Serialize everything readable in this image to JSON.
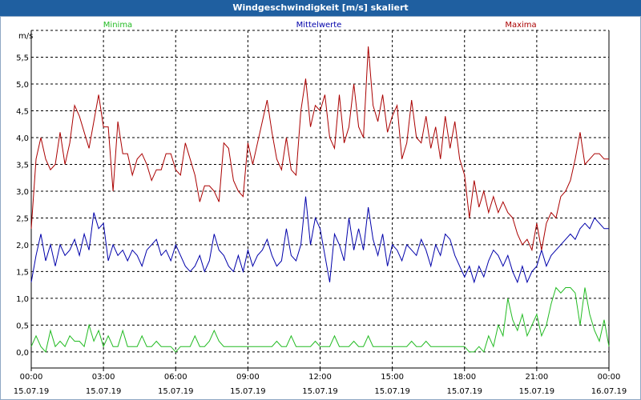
{
  "window": {
    "title": "Windgeschwindigkeit [m/s] skaliert"
  },
  "colors": {
    "titlebar": "#1f5fa0",
    "minima": "#22bb22",
    "mittelwerte": "#0000aa",
    "maxima": "#aa0000",
    "grid": "#000000"
  },
  "chart_data": {
    "type": "line",
    "title": "Windgeschwindigkeit [m/s] skaliert",
    "ylabel": "m/s",
    "xlabel": "",
    "ylim": [
      -0.3,
      6.0
    ],
    "yticks": [
      "0,0",
      "0,5",
      "1,0",
      "1,5",
      "2,0",
      "2,5",
      "3,0",
      "3,5",
      "4,0",
      "4,5",
      "5,0",
      "5,5"
    ],
    "ytick_values": [
      0,
      0.5,
      1.0,
      1.5,
      2.0,
      2.5,
      3.0,
      3.5,
      4.0,
      4.5,
      5.0,
      5.5
    ],
    "xlim": [
      0,
      24
    ],
    "xticks": [
      {
        "hour": 0,
        "time": "00:00",
        "date": "15.07.19"
      },
      {
        "hour": 3,
        "time": "03:00",
        "date": "15.07.19"
      },
      {
        "hour": 6,
        "time": "06:00",
        "date": "15.07.19"
      },
      {
        "hour": 9,
        "time": "09:00",
        "date": "15.07.19"
      },
      {
        "hour": 12,
        "time": "12:00",
        "date": "15.07.19"
      },
      {
        "hour": 15,
        "time": "15:00",
        "date": "15.07.19"
      },
      {
        "hour": 18,
        "time": "18:00",
        "date": "15.07.19"
      },
      {
        "hour": 21,
        "time": "21:00",
        "date": "15.07.19"
      },
      {
        "hour": 24,
        "time": "00:00",
        "date": "16.07.19"
      }
    ],
    "grid": true,
    "series": [
      {
        "name": "Minima",
        "color": "#22bb22",
        "x": [
          0,
          0.2,
          0.4,
          0.6,
          0.8,
          1.0,
          1.2,
          1.4,
          1.6,
          1.8,
          2.0,
          2.2,
          2.4,
          2.6,
          2.8,
          3.0,
          3.2,
          3.4,
          3.6,
          3.8,
          4.0,
          4.2,
          4.4,
          4.6,
          4.8,
          5.0,
          5.2,
          5.4,
          5.6,
          5.8,
          6.0,
          6.2,
          6.4,
          6.6,
          6.8,
          7.0,
          7.2,
          7.4,
          7.6,
          7.8,
          8.0,
          8.2,
          8.4,
          8.6,
          8.8,
          9.0,
          9.2,
          9.4,
          9.6,
          9.8,
          10.0,
          10.2,
          10.4,
          10.6,
          10.8,
          11.0,
          11.2,
          11.4,
          11.6,
          11.8,
          12.0,
          12.2,
          12.4,
          12.6,
          12.8,
          13.0,
          13.2,
          13.4,
          13.6,
          13.8,
          14.0,
          14.2,
          14.4,
          14.6,
          14.8,
          15.0,
          15.2,
          15.4,
          15.6,
          15.8,
          16.0,
          16.2,
          16.4,
          16.6,
          16.8,
          17.0,
          17.2,
          17.4,
          17.6,
          17.8,
          18.0,
          18.2,
          18.4,
          18.6,
          18.8,
          19.0,
          19.2,
          19.4,
          19.6,
          19.8,
          20.0,
          20.2,
          20.4,
          20.6,
          20.8,
          21.0,
          21.2,
          21.4,
          21.6,
          21.8,
          22.0,
          22.2,
          22.4,
          22.6,
          22.8,
          23.0,
          23.2,
          23.4,
          23.6,
          23.8,
          24.0
        ],
        "values": [
          0.1,
          0.3,
          0.1,
          0.0,
          0.4,
          0.1,
          0.2,
          0.1,
          0.3,
          0.2,
          0.2,
          0.1,
          0.5,
          0.2,
          0.4,
          0.1,
          0.3,
          0.1,
          0.1,
          0.4,
          0.1,
          0.1,
          0.1,
          0.3,
          0.1,
          0.1,
          0.2,
          0.1,
          0.1,
          0.1,
          0.0,
          0.1,
          0.1,
          0.1,
          0.3,
          0.1,
          0.1,
          0.2,
          0.4,
          0.2,
          0.1,
          0.1,
          0.1,
          0.1,
          0.1,
          0.1,
          0.1,
          0.1,
          0.1,
          0.1,
          0.1,
          0.2,
          0.1,
          0.1,
          0.3,
          0.1,
          0.1,
          0.1,
          0.1,
          0.2,
          0.1,
          0.1,
          0.1,
          0.3,
          0.1,
          0.1,
          0.1,
          0.2,
          0.1,
          0.1,
          0.3,
          0.1,
          0.1,
          0.1,
          0.1,
          0.1,
          0.1,
          0.1,
          0.1,
          0.2,
          0.1,
          0.1,
          0.2,
          0.1,
          0.1,
          0.1,
          0.1,
          0.1,
          0.1,
          0.1,
          0.1,
          0.0,
          0.0,
          0.1,
          0.0,
          0.3,
          0.1,
          0.5,
          0.3,
          1.0,
          0.6,
          0.4,
          0.7,
          0.3,
          0.5,
          0.7,
          0.3,
          0.5,
          0.9,
          1.2,
          1.1,
          1.2,
          1.2,
          1.1,
          0.5,
          1.2,
          0.7,
          0.4,
          0.2,
          0.6,
          0.1
        ]
      },
      {
        "name": "Mittelwerte",
        "color": "#0000aa",
        "x": [
          0,
          0.2,
          0.4,
          0.6,
          0.8,
          1.0,
          1.2,
          1.4,
          1.6,
          1.8,
          2.0,
          2.2,
          2.4,
          2.6,
          2.8,
          3.0,
          3.2,
          3.4,
          3.6,
          3.8,
          4.0,
          4.2,
          4.4,
          4.6,
          4.8,
          5.0,
          5.2,
          5.4,
          5.6,
          5.8,
          6.0,
          6.2,
          6.4,
          6.6,
          6.8,
          7.0,
          7.2,
          7.4,
          7.6,
          7.8,
          8.0,
          8.2,
          8.4,
          8.6,
          8.8,
          9.0,
          9.2,
          9.4,
          9.6,
          9.8,
          10.0,
          10.2,
          10.4,
          10.6,
          10.8,
          11.0,
          11.2,
          11.4,
          11.6,
          11.8,
          12.0,
          12.2,
          12.4,
          12.6,
          12.8,
          13.0,
          13.2,
          13.4,
          13.6,
          13.8,
          14.0,
          14.2,
          14.4,
          14.6,
          14.8,
          15.0,
          15.2,
          15.4,
          15.6,
          15.8,
          16.0,
          16.2,
          16.4,
          16.6,
          16.8,
          17.0,
          17.2,
          17.4,
          17.6,
          17.8,
          18.0,
          18.2,
          18.4,
          18.6,
          18.8,
          19.0,
          19.2,
          19.4,
          19.6,
          19.8,
          20.0,
          20.2,
          20.4,
          20.6,
          20.8,
          21.0,
          21.2,
          21.4,
          21.6,
          21.8,
          22.0,
          22.2,
          22.4,
          22.6,
          22.8,
          23.0,
          23.2,
          23.4,
          23.6,
          23.8,
          24.0
        ],
        "values": [
          1.3,
          1.8,
          2.2,
          1.7,
          2.0,
          1.6,
          2.0,
          1.8,
          1.9,
          2.1,
          1.8,
          2.2,
          1.9,
          2.6,
          2.3,
          2.4,
          1.7,
          2.0,
          1.8,
          1.9,
          1.7,
          1.9,
          1.8,
          1.6,
          1.9,
          2.0,
          2.1,
          1.8,
          1.9,
          1.7,
          2.0,
          1.8,
          1.6,
          1.5,
          1.6,
          1.8,
          1.5,
          1.7,
          2.2,
          1.9,
          1.8,
          1.6,
          1.5,
          1.8,
          1.5,
          1.9,
          1.6,
          1.8,
          1.9,
          2.1,
          1.8,
          1.6,
          1.7,
          2.3,
          1.8,
          1.7,
          2.0,
          2.9,
          2.0,
          2.5,
          2.3,
          1.8,
          1.3,
          2.2,
          2.0,
          1.7,
          2.5,
          1.9,
          2.3,
          1.9,
          2.7,
          2.1,
          1.8,
          2.2,
          1.6,
          2.0,
          1.9,
          1.7,
          2.0,
          1.9,
          1.8,
          2.1,
          1.9,
          1.6,
          2.0,
          1.8,
          2.2,
          2.1,
          1.8,
          1.6,
          1.4,
          1.6,
          1.3,
          1.6,
          1.4,
          1.7,
          1.9,
          1.8,
          1.6,
          1.8,
          1.5,
          1.3,
          1.6,
          1.3,
          1.5,
          1.6,
          1.9,
          1.6,
          1.8,
          1.9,
          2.0,
          2.1,
          2.2,
          2.1,
          2.3,
          2.4,
          2.3,
          2.5,
          2.4,
          2.3,
          2.3
        ]
      },
      {
        "name": "Maxima",
        "color": "#aa0000",
        "x": [
          0,
          0.2,
          0.4,
          0.6,
          0.8,
          1.0,
          1.2,
          1.4,
          1.6,
          1.8,
          2.0,
          2.2,
          2.4,
          2.6,
          2.8,
          3.0,
          3.2,
          3.4,
          3.6,
          3.8,
          4.0,
          4.2,
          4.4,
          4.6,
          4.8,
          5.0,
          5.2,
          5.4,
          5.6,
          5.8,
          6.0,
          6.2,
          6.4,
          6.6,
          6.8,
          7.0,
          7.2,
          7.4,
          7.6,
          7.8,
          8.0,
          8.2,
          8.4,
          8.6,
          8.8,
          9.0,
          9.2,
          9.4,
          9.6,
          9.8,
          10.0,
          10.2,
          10.4,
          10.6,
          10.8,
          11.0,
          11.2,
          11.4,
          11.6,
          11.8,
          12.0,
          12.2,
          12.4,
          12.6,
          12.8,
          13.0,
          13.2,
          13.4,
          13.6,
          13.8,
          14.0,
          14.2,
          14.4,
          14.6,
          14.8,
          15.0,
          15.2,
          15.4,
          15.6,
          15.8,
          16.0,
          16.2,
          16.4,
          16.6,
          16.8,
          17.0,
          17.2,
          17.4,
          17.6,
          17.8,
          18.0,
          18.2,
          18.4,
          18.6,
          18.8,
          19.0,
          19.2,
          19.4,
          19.6,
          19.8,
          20.0,
          20.2,
          20.4,
          20.6,
          20.8,
          21.0,
          21.2,
          21.4,
          21.6,
          21.8,
          22.0,
          22.2,
          22.4,
          22.6,
          22.8,
          23.0,
          23.2,
          23.4,
          23.6,
          23.8,
          24.0
        ],
        "values": [
          2.3,
          3.6,
          4.0,
          3.6,
          3.4,
          3.5,
          4.1,
          3.5,
          3.9,
          4.6,
          4.4,
          4.1,
          3.8,
          4.3,
          4.8,
          4.2,
          4.2,
          3.0,
          4.3,
          3.7,
          3.7,
          3.3,
          3.6,
          3.7,
          3.5,
          3.2,
          3.4,
          3.4,
          3.7,
          3.7,
          3.4,
          3.3,
          3.9,
          3.6,
          3.3,
          2.8,
          3.1,
          3.1,
          3.0,
          2.8,
          3.9,
          3.8,
          3.2,
          3.0,
          2.9,
          3.9,
          3.5,
          3.9,
          4.3,
          4.7,
          4.1,
          3.6,
          3.4,
          4.0,
          3.4,
          3.3,
          4.5,
          5.1,
          4.2,
          4.6,
          4.5,
          4.8,
          4.0,
          3.8,
          4.8,
          3.9,
          4.2,
          5.0,
          4.2,
          4.0,
          5.7,
          4.6,
          4.3,
          4.8,
          4.1,
          4.4,
          4.6,
          3.6,
          3.9,
          4.7,
          4.0,
          3.9,
          4.4,
          3.8,
          4.2,
          3.6,
          4.4,
          3.8,
          4.3,
          3.6,
          3.3,
          2.5,
          3.2,
          2.7,
          3.0,
          2.6,
          2.9,
          2.6,
          2.8,
          2.6,
          2.5,
          2.2,
          2.0,
          2.1,
          1.9,
          2.4,
          1.9,
          2.4,
          2.6,
          2.5,
          2.9,
          3.0,
          3.2,
          3.6,
          4.1,
          3.5,
          3.6,
          3.7,
          3.7,
          3.6,
          3.6
        ]
      }
    ]
  }
}
